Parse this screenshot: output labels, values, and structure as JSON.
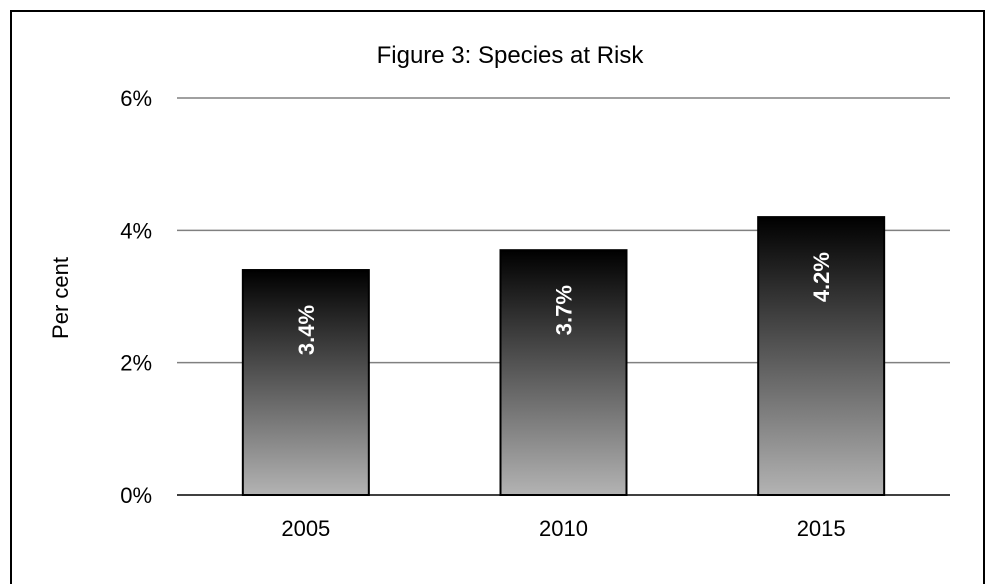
{
  "chart_data": {
    "type": "bar",
    "title": "Figure 3: Species at Risk",
    "xlabel": "",
    "ylabel": "Per cent",
    "categories": [
      "2005",
      "2010",
      "2015"
    ],
    "values": [
      3.4,
      3.7,
      4.2
    ],
    "data_labels": [
      "3.4%",
      "3.7%",
      "4.2%"
    ],
    "ylim": [
      0,
      6
    ],
    "yticks": [
      0,
      2,
      4,
      6
    ],
    "ytick_labels": [
      "0%",
      "2%",
      "4%",
      "6%"
    ],
    "grid": true,
    "legend": "none",
    "colors": {
      "bar_top": "#000000",
      "bar_bottom": "#b3b3b3",
      "grid": "#808080",
      "label_text": "#ffffff"
    }
  }
}
